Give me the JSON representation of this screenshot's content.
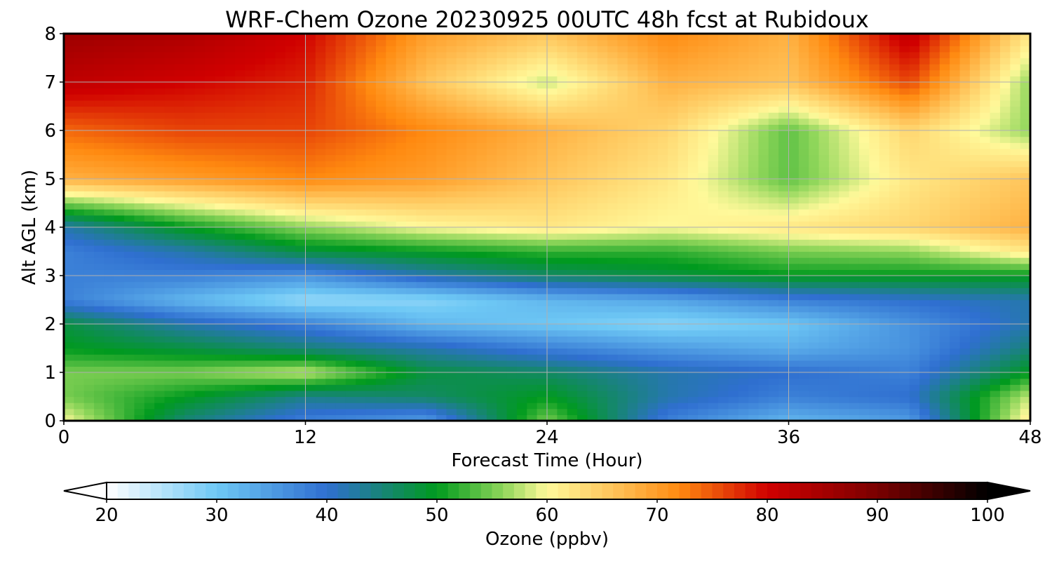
{
  "chart_data": {
    "type": "heatmap",
    "title": "WRF-Chem Ozone  20230925 00UTC 48h fcst at Rubidoux",
    "xlabel": "Forecast Time (Hour)",
    "ylabel": "Alt AGL (km)",
    "xlim": [
      0,
      48
    ],
    "ylim": [
      0,
      8
    ],
    "x_ticks": [
      0,
      12,
      24,
      36,
      48
    ],
    "y_ticks": [
      0,
      1,
      2,
      3,
      4,
      5,
      6,
      7,
      8
    ],
    "grid": true,
    "x": [
      0,
      6,
      12,
      18,
      24,
      30,
      36,
      42,
      48
    ],
    "y": [
      0,
      0.5,
      1,
      1.5,
      2,
      2.5,
      3,
      3.5,
      4,
      5,
      6,
      7,
      8
    ],
    "z": [
      [
        60,
        45,
        38,
        35,
        55,
        38,
        32,
        35,
        62
      ],
      [
        55,
        50,
        44,
        46,
        50,
        42,
        38,
        40,
        58
      ],
      [
        55,
        55,
        58,
        48,
        46,
        42,
        40,
        38,
        50
      ],
      [
        50,
        48,
        45,
        42,
        38,
        35,
        33,
        36,
        45
      ],
      [
        48,
        42,
        38,
        32,
        30,
        28,
        30,
        36,
        42
      ],
      [
        38,
        32,
        27,
        28,
        32,
        34,
        38,
        40,
        42
      ],
      [
        38,
        38,
        36,
        42,
        46,
        48,
        50,
        50,
        50
      ],
      [
        38,
        42,
        48,
        50,
        52,
        52,
        55,
        56,
        62
      ],
      [
        42,
        50,
        56,
        60,
        62,
        60,
        62,
        64,
        68
      ],
      [
        68,
        70,
        72,
        70,
        66,
        62,
        54,
        62,
        66
      ],
      [
        74,
        76,
        76,
        72,
        68,
        64,
        54,
        64,
        56
      ],
      [
        82,
        80,
        78,
        66,
        58,
        68,
        66,
        76,
        56
      ],
      [
        86,
        84,
        80,
        70,
        66,
        72,
        68,
        82,
        62
      ]
    ],
    "colorbar": {
      "label": "Ozone  (ppbv)",
      "min": 20,
      "max": 100,
      "ticks": [
        20,
        30,
        40,
        50,
        60,
        70,
        80,
        90,
        100
      ],
      "extend": "both",
      "stops": [
        {
          "v": 20,
          "c": "#ffffff"
        },
        {
          "v": 30,
          "c": "#6ec8f5"
        },
        {
          "v": 40,
          "c": "#2f6fd0"
        },
        {
          "v": 50,
          "c": "#009a1e"
        },
        {
          "v": 56,
          "c": "#8fd65a"
        },
        {
          "v": 60,
          "c": "#fff99a"
        },
        {
          "v": 66,
          "c": "#ffc45a"
        },
        {
          "v": 72,
          "c": "#ff8a10"
        },
        {
          "v": 80,
          "c": "#d00000"
        },
        {
          "v": 90,
          "c": "#7a0000"
        },
        {
          "v": 100,
          "c": "#000000"
        }
      ]
    }
  }
}
